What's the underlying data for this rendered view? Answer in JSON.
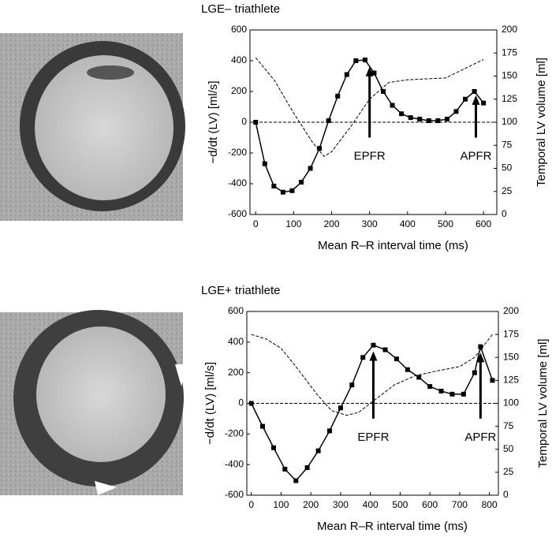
{
  "chart_data": [
    {
      "type": "line",
      "title": "LGE– triathlete",
      "xlabel": "Mean R–R interval time (ms)",
      "ylabel": "−d/dt (LV) [ml/s]",
      "y2label": "Temporal LV volume [ml]",
      "xlim": [
        -15,
        635
      ],
      "xticks": [
        0,
        100,
        200,
        300,
        400,
        500,
        600
      ],
      "ylim": [
        -600,
        600
      ],
      "yticks": [
        -600,
        -400,
        -200,
        0,
        200,
        400,
        600
      ],
      "y2lim": [
        0,
        200
      ],
      "y2ticks": [
        0,
        25,
        50,
        75,
        100,
        125,
        150,
        175,
        200
      ],
      "hline": 0,
      "series": [
        {
          "color": "#000000",
          "marker": "square",
          "dash": false,
          "x": [
            0,
            24,
            48,
            72,
            96,
            120,
            144,
            168,
            192,
            216,
            240,
            264,
            288,
            312,
            336,
            360,
            384,
            408,
            432,
            456,
            480,
            504,
            528,
            552,
            576,
            600
          ],
          "values": [
            0,
            -270,
            -415,
            -455,
            -445,
            -390,
            -300,
            -170,
            10,
            170,
            310,
            400,
            405,
            320,
            200,
            110,
            55,
            30,
            20,
            10,
            10,
            20,
            70,
            150,
            200,
            125
          ]
        },
        {
          "color": "#000000",
          "marker": "none",
          "dash": true,
          "axis": "y2",
          "x": [
            0,
            50,
            100,
            150,
            180,
            200,
            250,
            300,
            350,
            400,
            450,
            500,
            550,
            600
          ],
          "values": [
            170,
            145,
            110,
            78,
            63,
            68,
            95,
            125,
            143,
            146,
            147,
            148,
            158,
            168
          ]
        }
      ],
      "annotations": [
        {
          "text": "EPFR",
          "x": 300,
          "arrow_from": -100,
          "arrow_to": 360
        },
        {
          "text": "APFR",
          "x": 580,
          "arrow_from": -100,
          "arrow_to": 175
        }
      ]
    },
    {
      "type": "line",
      "title": "LGE+ triathlete",
      "xlabel": "Mean R–R interval time (ms)",
      "ylabel": "−d/dt (LV) [ml/s]",
      "y2label": "Temporal LV volume [ml]",
      "xlim": [
        -15,
        830
      ],
      "xticks": [
        0,
        100,
        200,
        300,
        400,
        500,
        600,
        700,
        800
      ],
      "ylim": [
        -600,
        600
      ],
      "yticks": [
        -600,
        -400,
        -200,
        0,
        200,
        400,
        600
      ],
      "y2lim": [
        0,
        200
      ],
      "y2ticks": [
        0,
        25,
        50,
        75,
        100,
        125,
        150,
        175,
        200
      ],
      "hline": 0,
      "series": [
        {
          "color": "#000000",
          "marker": "square",
          "dash": false,
          "x": [
            0,
            38,
            75,
            113,
            150,
            188,
            225,
            263,
            300,
            338,
            375,
            410,
            450,
            488,
            525,
            563,
            600,
            638,
            675,
            713,
            750,
            770,
            810
          ],
          "values": [
            0,
            -150,
            -290,
            -430,
            -505,
            -420,
            -310,
            -180,
            -30,
            120,
            300,
            380,
            350,
            290,
            220,
            170,
            110,
            80,
            60,
            60,
            200,
            370,
            150
          ]
        },
        {
          "color": "#000000",
          "marker": "none",
          "dash": true,
          "axis": "y2",
          "x": [
            0,
            50,
            100,
            150,
            220,
            270,
            320,
            360,
            420,
            480,
            550,
            620,
            700,
            750,
            810
          ],
          "values": [
            175,
            170,
            160,
            140,
            110,
            92,
            87,
            90,
            105,
            120,
            130,
            135,
            140,
            150,
            175
          ]
        }
      ],
      "annotations": [
        {
          "text": "EPFR",
          "x": 410,
          "arrow_from": -100,
          "arrow_to": 340
        },
        {
          "text": "APFR",
          "x": 770,
          "arrow_from": -100,
          "arrow_to": 330
        }
      ]
    }
  ]
}
